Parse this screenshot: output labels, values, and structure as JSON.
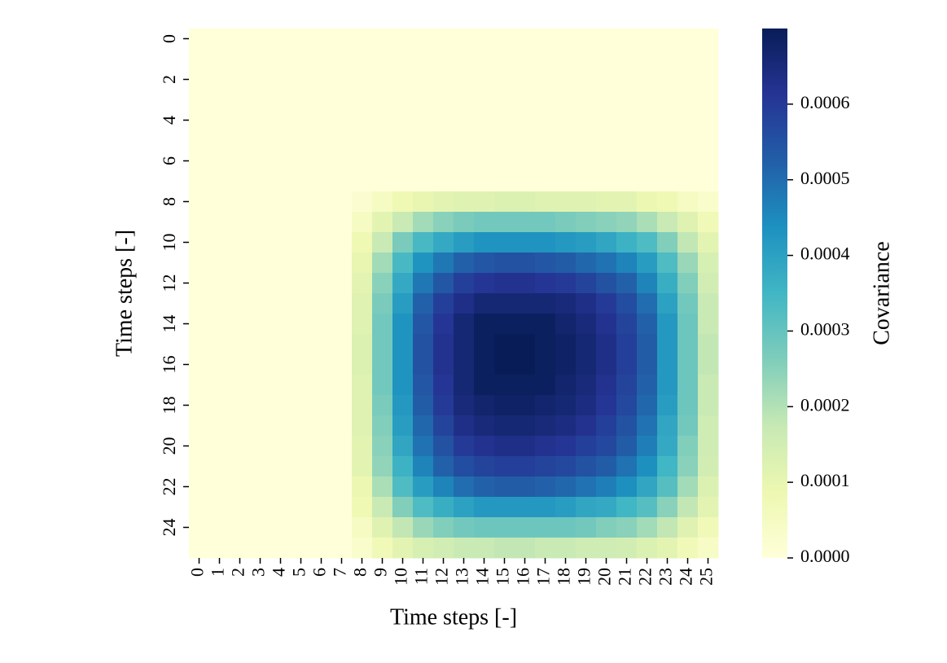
{
  "chart_data": {
    "type": "heatmap",
    "xlabel": "Time steps [-]",
    "ylabel": "Time steps [-]",
    "colorbar_label": "Covariance",
    "xticks": [
      0,
      1,
      2,
      3,
      4,
      5,
      6,
      7,
      8,
      9,
      10,
      11,
      12,
      13,
      14,
      15,
      16,
      17,
      18,
      19,
      20,
      21,
      22,
      23,
      24,
      25
    ],
    "yticks": [
      0,
      2,
      4,
      6,
      8,
      10,
      12,
      14,
      16,
      18,
      20,
      22,
      24
    ],
    "zlim": [
      0,
      0.0007
    ],
    "zticks": [
      {
        "value": 0,
        "label": "0.0000"
      },
      0.0001,
      0.0002,
      0.0003,
      0.0004,
      0.0005,
      0.0006
    ],
    "colors": [
      "#ffffd9",
      "#edf8b1",
      "#c7e9b4",
      "#7fcdbb",
      "#41b6c4",
      "#1d91c0",
      "#225ea8",
      "#253494",
      "#081d58"
    ],
    "z": [
      [
        0,
        0,
        0,
        0,
        0,
        0,
        0,
        0,
        0,
        0,
        0,
        0,
        0,
        0,
        0,
        0,
        0,
        0,
        0,
        0,
        0,
        0,
        0,
        0,
        0,
        0
      ],
      [
        0,
        0,
        0,
        0,
        0,
        0,
        0,
        0,
        0,
        0,
        0,
        0,
        0,
        0,
        0,
        0,
        0,
        0,
        0,
        0,
        0,
        0,
        0,
        0,
        0,
        0
      ],
      [
        0,
        0,
        0,
        0,
        0,
        0,
        0,
        0,
        0,
        0,
        0,
        0,
        0,
        0,
        0,
        0,
        0,
        0,
        0,
        0,
        0,
        0,
        0,
        0,
        0,
        0
      ],
      [
        0,
        0,
        0,
        0,
        0,
        0,
        0,
        0,
        0,
        0,
        0,
        0,
        0,
        0,
        0,
        0,
        0,
        0,
        0,
        0,
        0,
        0,
        0,
        0,
        0,
        0
      ],
      [
        0,
        0,
        0,
        0,
        0,
        0,
        0,
        0,
        0,
        0,
        0,
        0,
        0,
        0,
        0,
        0,
        0,
        0,
        0,
        0,
        0,
        0,
        0,
        0,
        0,
        0
      ],
      [
        0,
        0,
        0,
        0,
        0,
        0,
        0,
        0,
        0,
        0,
        0,
        0,
        0,
        0,
        0,
        0,
        0,
        0,
        0,
        0,
        0,
        0,
        0,
        0,
        0,
        0
      ],
      [
        0,
        0,
        0,
        0,
        0,
        0,
        0,
        0,
        0,
        0,
        0,
        0,
        0,
        0,
        0,
        0,
        0,
        0,
        0,
        0,
        0,
        0,
        0,
        0,
        0,
        0
      ],
      [
        0,
        0,
        0,
        0,
        0,
        0,
        0,
        0,
        0,
        0,
        0,
        0,
        0,
        0,
        0,
        0,
        0,
        0,
        0,
        0,
        0,
        0,
        0,
        0,
        0,
        0
      ],
      [
        0,
        0,
        0,
        0,
        0,
        0,
        0,
        0,
        2e-05,
        5e-05,
        8e-05,
        0.0001,
        0.00011,
        0.00012,
        0.00012,
        0.00013,
        0.00013,
        0.00012,
        0.00012,
        0.00012,
        0.00011,
        0.00011,
        9e-05,
        8e-05,
        5e-05,
        3e-05
      ],
      [
        0,
        0,
        0,
        0,
        0,
        0,
        0,
        0,
        5e-05,
        0.00011,
        0.00017,
        0.00022,
        0.00025,
        0.00027,
        0.00028,
        0.00028,
        0.00028,
        0.00028,
        0.00027,
        0.00026,
        0.00025,
        0.00024,
        0.00021,
        0.00017,
        0.00012,
        7e-05
      ],
      [
        0,
        0,
        0,
        0,
        0,
        0,
        0,
        0,
        8e-05,
        0.00017,
        0.00027,
        0.00034,
        0.00038,
        0.00041,
        0.00043,
        0.00043,
        0.00043,
        0.00043,
        0.00042,
        0.00041,
        0.00039,
        0.00036,
        0.00033,
        0.00026,
        0.00018,
        0.00011
      ],
      [
        0,
        0,
        0,
        0,
        0,
        0,
        0,
        0,
        0.0001,
        0.00022,
        0.00034,
        0.00043,
        0.00048,
        0.00052,
        0.00054,
        0.00055,
        0.00055,
        0.00054,
        0.00053,
        0.00051,
        0.00049,
        0.00046,
        0.00041,
        0.00033,
        0.00023,
        0.00014
      ],
      [
        0,
        0,
        0,
        0,
        0,
        0,
        0,
        0,
        0.00011,
        0.00025,
        0.00038,
        0.00048,
        0.00054,
        0.00059,
        0.00061,
        0.00062,
        0.00062,
        0.00061,
        0.0006,
        0.00058,
        0.00055,
        0.00052,
        0.00046,
        0.00037,
        0.00026,
        0.00015
      ],
      [
        0,
        0,
        0,
        0,
        0,
        0,
        0,
        0,
        0.00012,
        0.00027,
        0.00041,
        0.00052,
        0.00059,
        0.00063,
        0.00066,
        0.00066,
        0.00066,
        0.00066,
        0.00065,
        0.00063,
        0.0006,
        0.00056,
        0.0005,
        0.0004,
        0.00028,
        0.00017
      ],
      [
        0,
        0,
        0,
        0,
        0,
        0,
        0,
        0,
        0.00012,
        0.00028,
        0.00043,
        0.00054,
        0.00061,
        0.00066,
        0.00069,
        0.00069,
        0.00069,
        0.00069,
        0.00067,
        0.00065,
        0.00062,
        0.00058,
        0.00052,
        0.00042,
        0.00029,
        0.00017
      ],
      [
        0,
        0,
        0,
        0,
        0,
        0,
        0,
        0,
        0.00013,
        0.00028,
        0.00043,
        0.00055,
        0.00062,
        0.00066,
        0.00069,
        0.0007,
        0.0007,
        0.00069,
        0.00068,
        0.00066,
        0.00063,
        0.00059,
        0.00053,
        0.00042,
        0.00029,
        0.00018
      ],
      [
        0,
        0,
        0,
        0,
        0,
        0,
        0,
        0,
        0.00013,
        0.00028,
        0.00043,
        0.00055,
        0.00062,
        0.00066,
        0.00069,
        0.0007,
        0.0007,
        0.00069,
        0.00068,
        0.00066,
        0.00063,
        0.00059,
        0.00053,
        0.00042,
        0.00029,
        0.00018
      ],
      [
        0,
        0,
        0,
        0,
        0,
        0,
        0,
        0,
        0.00012,
        0.00028,
        0.00043,
        0.00054,
        0.00061,
        0.00066,
        0.00069,
        0.00069,
        0.00069,
        0.00069,
        0.00067,
        0.00065,
        0.00062,
        0.00058,
        0.00052,
        0.00042,
        0.00029,
        0.00017
      ],
      [
        0,
        0,
        0,
        0,
        0,
        0,
        0,
        0,
        0.00012,
        0.00027,
        0.00042,
        0.00053,
        0.0006,
        0.00065,
        0.00067,
        0.00068,
        0.00068,
        0.00067,
        0.00066,
        0.00064,
        0.00061,
        0.00057,
        0.00051,
        0.00041,
        0.00029,
        0.00017
      ],
      [
        0,
        0,
        0,
        0,
        0,
        0,
        0,
        0,
        0.00012,
        0.00026,
        0.00041,
        0.00051,
        0.00058,
        0.00063,
        0.00065,
        0.00066,
        0.00066,
        0.00065,
        0.00064,
        0.00062,
        0.00059,
        0.00055,
        0.00049,
        0.00039,
        0.00028,
        0.00016
      ],
      [
        0,
        0,
        0,
        0,
        0,
        0,
        0,
        0,
        0.00011,
        0.00025,
        0.00039,
        0.00049,
        0.00055,
        0.0006,
        0.00062,
        0.00063,
        0.00063,
        0.00062,
        0.00061,
        0.00059,
        0.00057,
        0.00053,
        0.00047,
        0.00038,
        0.00026,
        0.00016
      ],
      [
        0,
        0,
        0,
        0,
        0,
        0,
        0,
        0,
        0.00011,
        0.00024,
        0.00036,
        0.00046,
        0.00052,
        0.00056,
        0.00058,
        0.00059,
        0.00059,
        0.00058,
        0.00057,
        0.00055,
        0.00053,
        0.00049,
        0.00044,
        0.00035,
        0.00025,
        0.00015
      ],
      [
        0,
        0,
        0,
        0,
        0,
        0,
        0,
        0,
        9e-05,
        0.00021,
        0.00033,
        0.00041,
        0.00046,
        0.0005,
        0.00052,
        0.00053,
        0.00053,
        0.00052,
        0.00051,
        0.00049,
        0.00047,
        0.00044,
        0.00039,
        0.00032,
        0.00022,
        0.00013
      ],
      [
        0,
        0,
        0,
        0,
        0,
        0,
        0,
        0,
        8e-05,
        0.00017,
        0.00026,
        0.00033,
        0.00037,
        0.0004,
        0.00042,
        0.00042,
        0.00042,
        0.00042,
        0.00041,
        0.00039,
        0.00038,
        0.00035,
        0.00032,
        0.00025,
        0.00018,
        0.00011
      ],
      [
        0,
        0,
        0,
        0,
        0,
        0,
        0,
        0,
        5e-05,
        0.00012,
        0.00018,
        0.00023,
        0.00026,
        0.00028,
        0.00029,
        0.00029,
        0.00029,
        0.00029,
        0.00029,
        0.00028,
        0.00026,
        0.00025,
        0.00022,
        0.00018,
        0.00012,
        7e-05
      ],
      [
        0,
        0,
        0,
        0,
        0,
        0,
        0,
        0,
        3e-05,
        7e-05,
        0.00011,
        0.00014,
        0.00015,
        0.00017,
        0.00017,
        0.00018,
        0.00018,
        0.00017,
        0.00017,
        0.00016,
        0.00016,
        0.00015,
        0.00013,
        0.00011,
        7e-05,
        4e-05
      ]
    ]
  }
}
